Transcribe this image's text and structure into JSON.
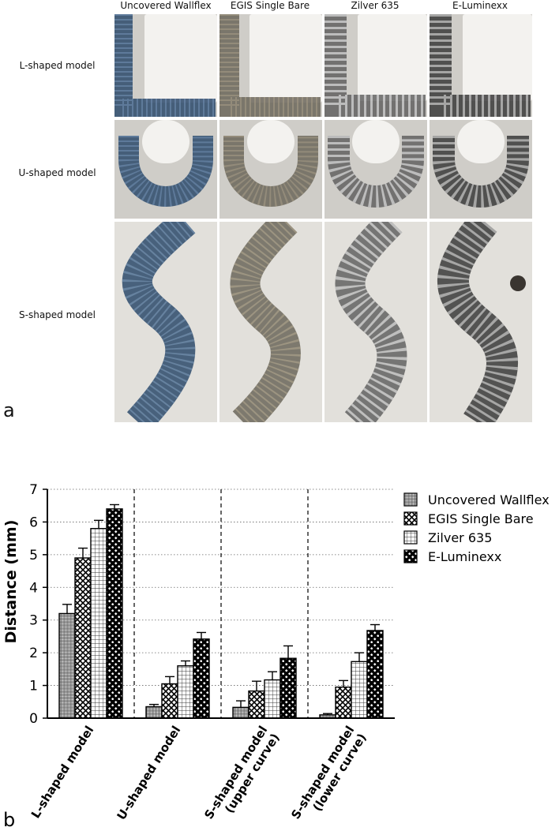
{
  "panel_a": {
    "letter": "a",
    "columns": [
      "Uncovered Wallflex",
      "EGIS Single Bare",
      "Zilver 635",
      "E-Luminexx"
    ],
    "rows": [
      "L-shaped model",
      "U-shaped model",
      "S-shaped model"
    ]
  },
  "panel_b": {
    "letter": "b"
  },
  "chart_data": {
    "type": "bar",
    "ylabel": "Distance (mm)",
    "ylim": [
      0,
      7
    ],
    "yticks": [
      0,
      1,
      2,
      3,
      4,
      5,
      6,
      7
    ],
    "grid": "horizontal dotted",
    "legend_position": "right",
    "categories": [
      "L-shaped model",
      "U-shaped model",
      "S-shaped model\n(upper curve)",
      "S-shaped model\n(lower curve)"
    ],
    "series": [
      {
        "name": "Uncovered Wallflex",
        "values": [
          3.2,
          0.35,
          0.33,
          0.1
        ],
        "errors": [
          0.28,
          0.07,
          0.2,
          0.04
        ]
      },
      {
        "name": "EGIS Single Bare",
        "values": [
          4.9,
          1.05,
          0.83,
          0.95
        ],
        "errors": [
          0.3,
          0.22,
          0.3,
          0.2
        ]
      },
      {
        "name": "Zilver 635",
        "values": [
          5.8,
          1.6,
          1.17,
          1.73
        ],
        "errors": [
          0.25,
          0.15,
          0.25,
          0.27
        ]
      },
      {
        "name": "E-Luminexx",
        "values": [
          6.4,
          2.42,
          1.83,
          2.68
        ],
        "errors": [
          0.13,
          0.2,
          0.38,
          0.18
        ]
      }
    ]
  }
}
